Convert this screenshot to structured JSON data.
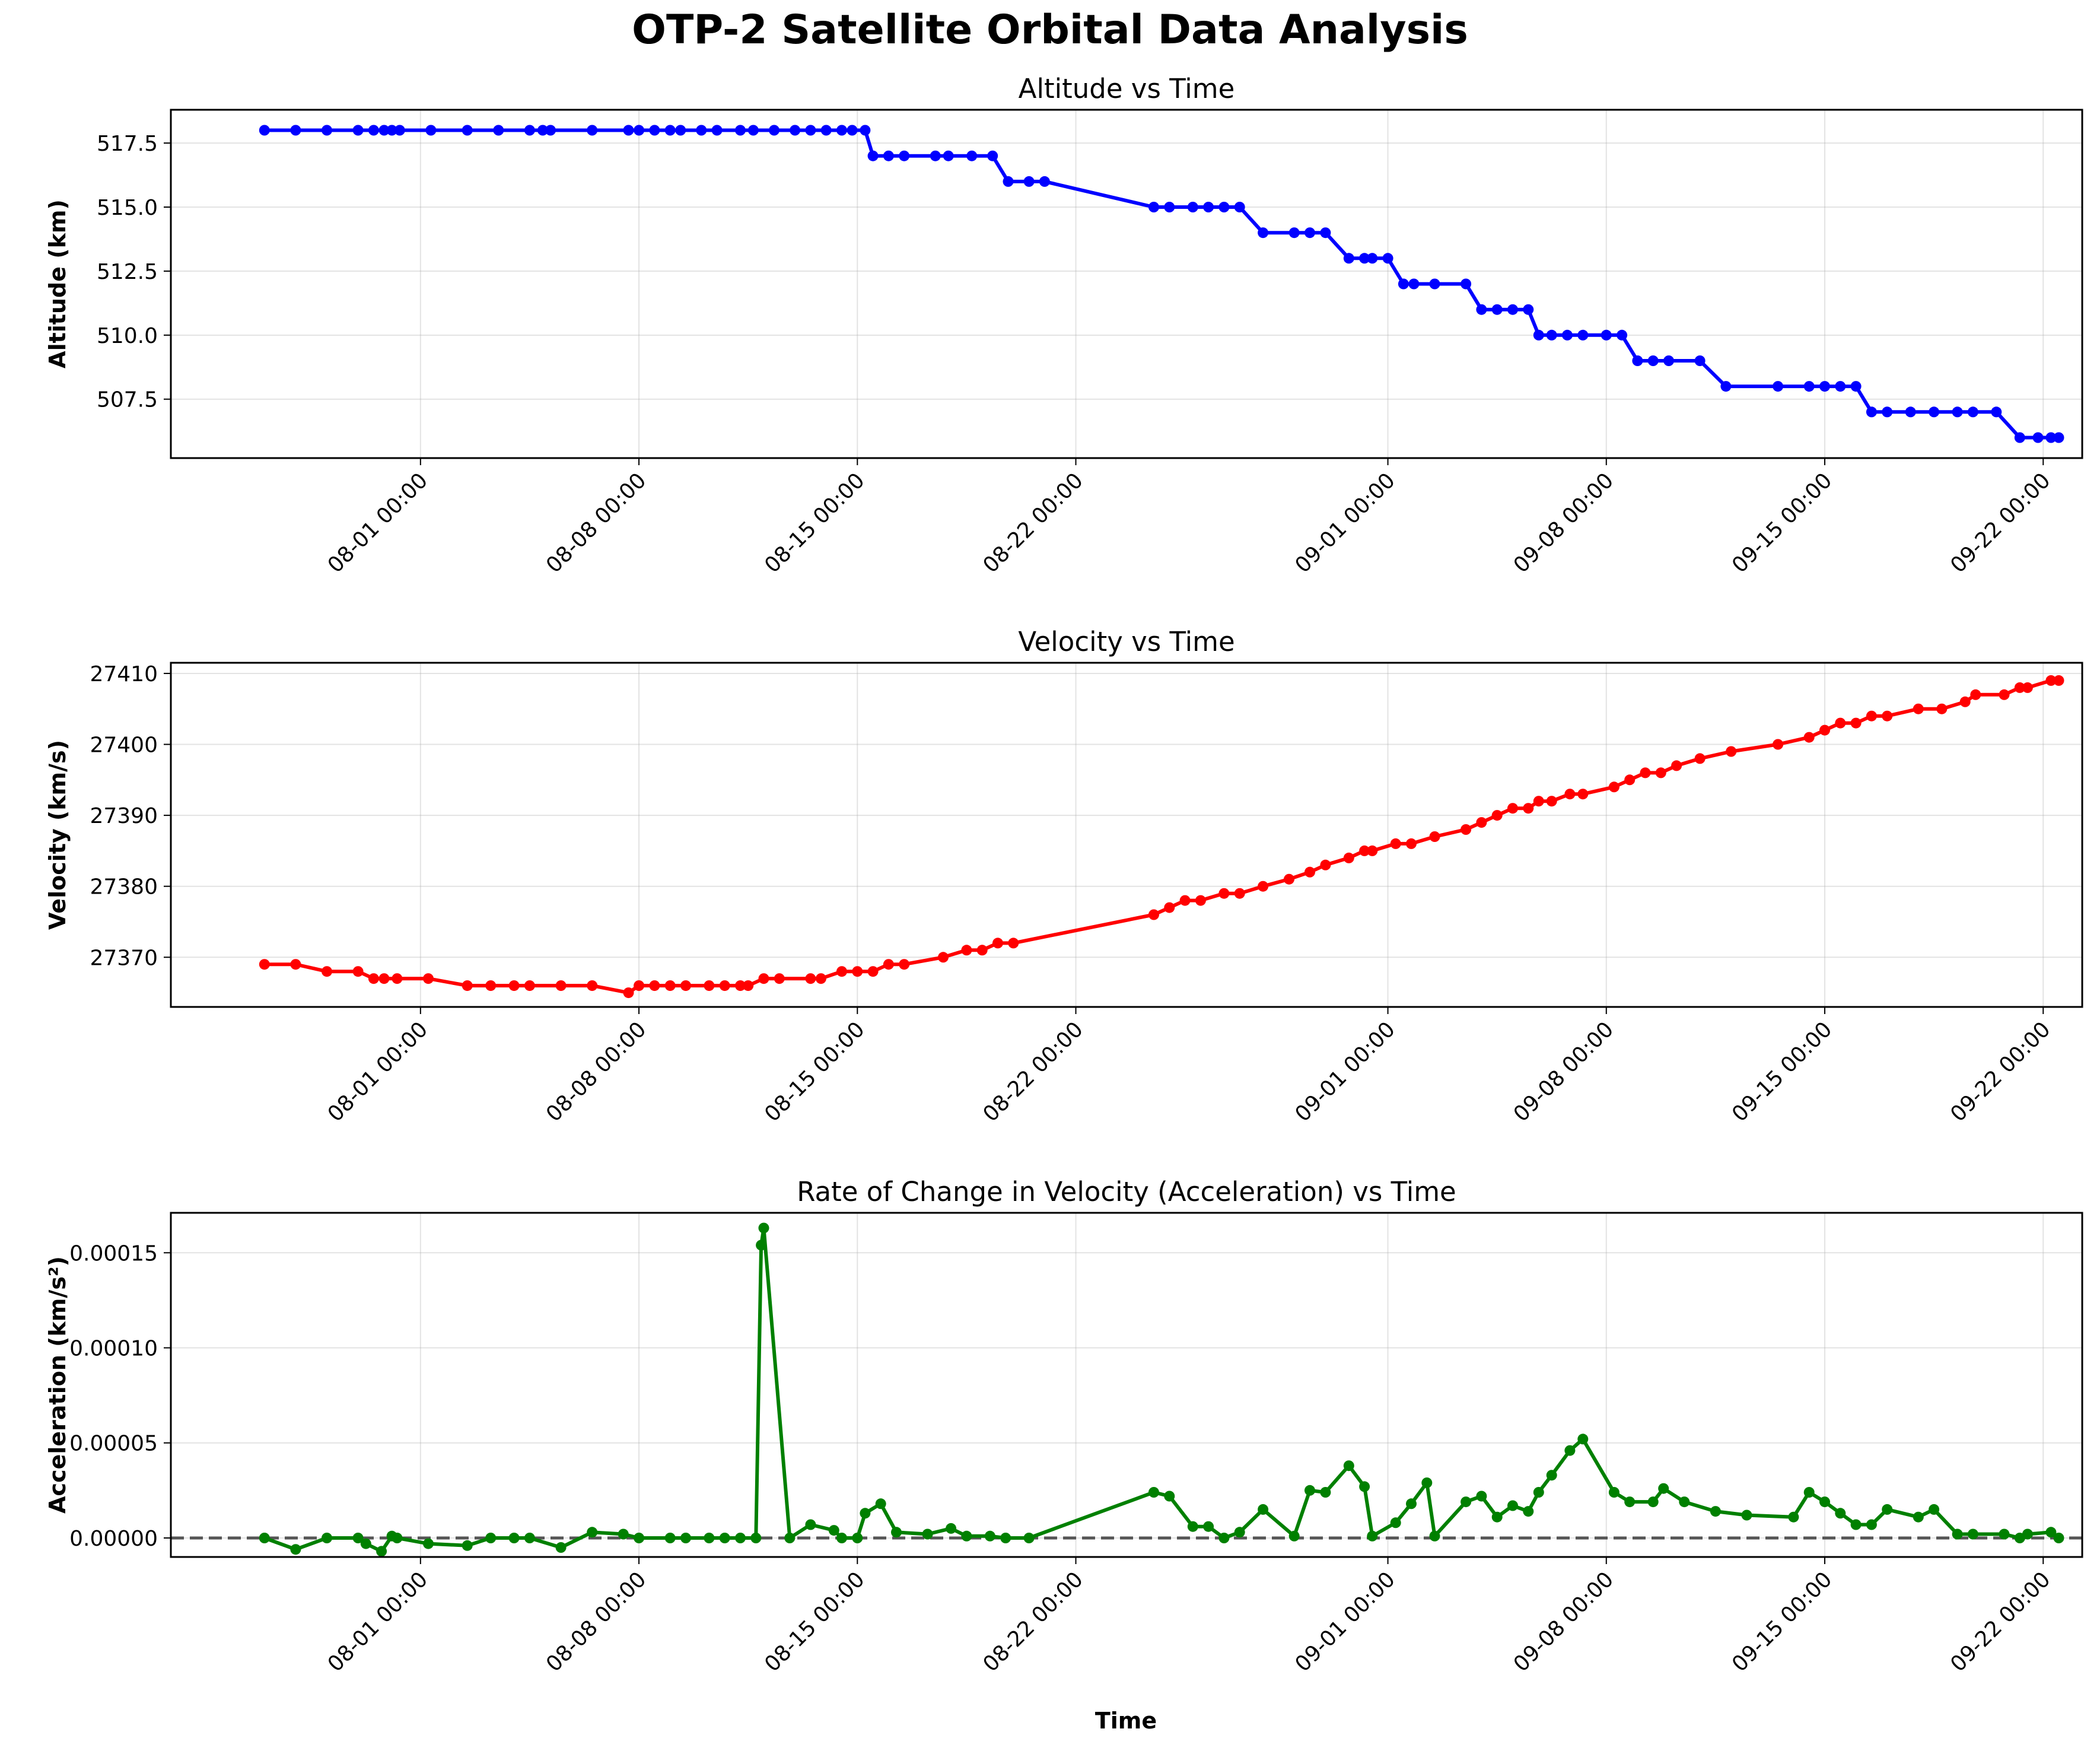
{
  "figure": {
    "title": "OTP-2 Satellite Orbital Data Analysis",
    "xlabel": "Time"
  },
  "chart_data": [
    {
      "type": "line",
      "title": "Altitude vs Time",
      "xlabel": "",
      "ylabel": "Altitude (km)",
      "color": "#0000ff",
      "grid": true,
      "xlim": [
        "2024-07-24 00:00",
        "2024-09-23 06:00"
      ],
      "ylim": [
        505.2,
        518.8
      ],
      "xticks": [
        "08-01 00:00",
        "08-08 00:00",
        "08-15 00:00",
        "08-22 00:00",
        "09-01 00:00",
        "09-08 00:00",
        "09-15 00:00",
        "09-22 00:00"
      ],
      "yticks": [
        "507.5",
        "510.0",
        "512.5",
        "515.0",
        "517.5"
      ],
      "x": [
        "2024-07-27 00:00",
        "2024-07-28 00:00",
        "2024-07-29 00:00",
        "2024-07-30 00:00",
        "2024-07-30 12:00",
        "2024-07-30 20:00",
        "2024-07-31 02:00",
        "2024-07-31 08:00",
        "2024-08-01 08:00",
        "2024-08-02 12:00",
        "2024-08-03 12:00",
        "2024-08-04 12:00",
        "2024-08-04 22:00",
        "2024-08-05 04:00",
        "2024-08-06 12:00",
        "2024-08-07 16:00",
        "2024-08-08 00:00",
        "2024-08-08 12:00",
        "2024-08-09 00:00",
        "2024-08-09 08:00",
        "2024-08-10 00:00",
        "2024-08-10 12:00",
        "2024-08-11 06:00",
        "2024-08-11 16:00",
        "2024-08-12 08:00",
        "2024-08-13 00:00",
        "2024-08-13 12:00",
        "2024-08-14 00:00",
        "2024-08-14 12:00",
        "2024-08-14 20:00",
        "2024-08-15 06:00",
        "2024-08-15 12:00",
        "2024-08-16 00:00",
        "2024-08-16 12:00",
        "2024-08-17 12:00",
        "2024-08-17 22:00",
        "2024-08-18 16:00",
        "2024-08-19 08:00",
        "2024-08-19 20:00",
        "2024-08-20 12:00",
        "2024-08-21 00:00",
        "2024-08-24 12:00",
        "2024-08-25 00:00",
        "2024-08-25 18:00",
        "2024-08-26 06:00",
        "2024-08-26 18:00",
        "2024-08-27 06:00",
        "2024-08-28 00:00",
        "2024-08-29 00:00",
        "2024-08-29 12:00",
        "2024-08-30 00:00",
        "2024-08-30 18:00",
        "2024-08-31 06:00",
        "2024-08-31 12:00",
        "2024-09-01 00:00",
        "2024-09-01 12:00",
        "2024-09-01 20:00",
        "2024-09-02 12:00",
        "2024-09-03 12:00",
        "2024-09-04 00:00",
        "2024-09-04 12:00",
        "2024-09-05 00:00",
        "2024-09-05 12:00",
        "2024-09-05 20:00",
        "2024-09-06 06:00",
        "2024-09-06 18:00",
        "2024-09-07 06:00",
        "2024-09-08 00:00",
        "2024-09-08 12:00",
        "2024-09-09 00:00",
        "2024-09-09 12:00",
        "2024-09-10 00:00",
        "2024-09-11 00:00",
        "2024-09-11 20:00",
        "2024-09-13 12:00",
        "2024-09-14 12:00",
        "2024-09-15 00:00",
        "2024-09-15 12:00",
        "2024-09-16 00:00",
        "2024-09-16 12:00",
        "2024-09-17 00:00",
        "2024-09-17 18:00",
        "2024-09-18 12:00",
        "2024-09-19 06:00",
        "2024-09-19 18:00",
        "2024-09-20 12:00",
        "2024-09-21 06:00",
        "2024-09-21 20:00",
        "2024-09-22 06:00",
        "2024-09-22 12:00"
      ],
      "y": [
        518,
        518,
        518,
        518,
        518,
        518,
        518,
        518,
        518,
        518,
        518,
        518,
        518,
        518,
        518,
        518,
        518,
        518,
        518,
        518,
        518,
        518,
        518,
        518,
        518,
        518,
        518,
        518,
        518,
        518,
        518,
        517,
        517,
        517,
        517,
        517,
        517,
        517,
        516,
        516,
        516,
        515,
        515,
        515,
        515,
        515,
        515,
        514,
        514,
        514,
        514,
        513,
        513,
        513,
        513,
        512,
        512,
        512,
        512,
        511,
        511,
        511,
        511,
        510,
        510,
        510,
        510,
        510,
        510,
        509,
        509,
        509,
        509,
        508,
        508,
        508,
        508,
        508,
        508,
        507,
        507,
        507,
        507,
        507,
        507,
        507,
        506,
        506,
        506,
        506
      ]
    },
    {
      "type": "line",
      "title": "Velocity vs Time",
      "xlabel": "",
      "ylabel": "Velocity (km/s)",
      "color": "#ff0000",
      "grid": true,
      "xlim": [
        "2024-07-24 00:00",
        "2024-09-23 06:00"
      ],
      "ylim": [
        27363,
        27411.5
      ],
      "xticks": [
        "08-01 00:00",
        "08-08 00:00",
        "08-15 00:00",
        "08-22 00:00",
        "09-01 00:00",
        "09-08 00:00",
        "09-15 00:00",
        "09-22 00:00"
      ],
      "yticks": [
        "27370",
        "27380",
        "27390",
        "27400",
        "27410"
      ],
      "x": [
        "2024-07-27 00:00",
        "2024-07-28 00:00",
        "2024-07-29 00:00",
        "2024-07-30 00:00",
        "2024-07-30 12:00",
        "2024-07-30 20:00",
        "2024-07-31 06:00",
        "2024-08-01 06:00",
        "2024-08-02 12:00",
        "2024-08-03 06:00",
        "2024-08-04 00:00",
        "2024-08-04 12:00",
        "2024-08-05 12:00",
        "2024-08-06 12:00",
        "2024-08-07 16:00",
        "2024-08-08 00:00",
        "2024-08-08 12:00",
        "2024-08-09 00:00",
        "2024-08-09 12:00",
        "2024-08-10 06:00",
        "2024-08-10 18:00",
        "2024-08-11 06:00",
        "2024-08-11 12:00",
        "2024-08-12 00:00",
        "2024-08-12 12:00",
        "2024-08-13 12:00",
        "2024-08-13 20:00",
        "2024-08-14 12:00",
        "2024-08-15 00:00",
        "2024-08-15 12:00",
        "2024-08-16 00:00",
        "2024-08-16 12:00",
        "2024-08-17 18:00",
        "2024-08-18 12:00",
        "2024-08-19 00:00",
        "2024-08-19 12:00",
        "2024-08-20 00:00",
        "2024-08-24 12:00",
        "2024-08-25 00:00",
        "2024-08-25 12:00",
        "2024-08-26 00:00",
        "2024-08-26 18:00",
        "2024-08-27 06:00",
        "2024-08-28 00:00",
        "2024-08-28 20:00",
        "2024-08-29 12:00",
        "2024-08-30 00:00",
        "2024-08-30 18:00",
        "2024-08-31 06:00",
        "2024-08-31 12:00",
        "2024-09-01 06:00",
        "2024-09-01 18:00",
        "2024-09-02 12:00",
        "2024-09-03 12:00",
        "2024-09-04 00:00",
        "2024-09-04 12:00",
        "2024-09-05 00:00",
        "2024-09-05 12:00",
        "2024-09-05 20:00",
        "2024-09-06 06:00",
        "2024-09-06 20:00",
        "2024-09-07 06:00",
        "2024-09-08 06:00",
        "2024-09-08 18:00",
        "2024-09-09 06:00",
        "2024-09-09 18:00",
        "2024-09-10 06:00",
        "2024-09-11 00:00",
        "2024-09-12 00:00",
        "2024-09-13 12:00",
        "2024-09-14 12:00",
        "2024-09-15 00:00",
        "2024-09-15 12:00",
        "2024-09-16 00:00",
        "2024-09-16 12:00",
        "2024-09-17 00:00",
        "2024-09-18 00:00",
        "2024-09-18 18:00",
        "2024-09-19 12:00",
        "2024-09-19 20:00",
        "2024-09-20 18:00",
        "2024-09-21 06:00",
        "2024-09-21 12:00",
        "2024-09-22 06:00",
        "2024-09-22 12:00"
      ],
      "y": [
        27369,
        27369,
        27368,
        27368,
        27367,
        27367,
        27367,
        27367,
        27366,
        27366,
        27366,
        27366,
        27366,
        27366,
        27365,
        27366,
        27366,
        27366,
        27366,
        27366,
        27366,
        27366,
        27366,
        27367,
        27367,
        27367,
        27367,
        27368,
        27368,
        27368,
        27369,
        27369,
        27370,
        27371,
        27371,
        27372,
        27372,
        27376,
        27377,
        27378,
        27378,
        27379,
        27379,
        27380,
        27381,
        27382,
        27383,
        27384,
        27385,
        27385,
        27386,
        27386,
        27387,
        27388,
        27389,
        27390,
        27391,
        27391,
        27392,
        27392,
        27393,
        27393,
        27394,
        27395,
        27396,
        27396,
        27397,
        27398,
        27399,
        27400,
        27401,
        27402,
        27403,
        27403,
        27404,
        27404,
        27405,
        27405,
        27406,
        27407,
        27407,
        27408,
        27408,
        27409,
        27409
      ]
    },
    {
      "type": "line",
      "title": "Rate of Change in Velocity (Acceleration) vs Time",
      "xlabel": "Time",
      "ylabel": "Acceleration (km/s²)",
      "color": "#008000",
      "grid": true,
      "reference_line": {
        "y": 0,
        "style": "dashed",
        "color": "#555555"
      },
      "xlim": [
        "2024-07-24 00:00",
        "2024-09-23 06:00"
      ],
      "ylim": [
        -1e-05,
        0.000171
      ],
      "xticks": [
        "08-01 00:00",
        "08-08 00:00",
        "08-15 00:00",
        "08-22 00:00",
        "09-01 00:00",
        "09-08 00:00",
        "09-15 00:00",
        "09-22 00:00"
      ],
      "yticks": [
        "0.00000",
        "0.00005",
        "0.00010",
        "0.00015"
      ],
      "x": [
        "2024-07-27 00:00",
        "2024-07-28 00:00",
        "2024-07-29 00:00",
        "2024-07-30 00:00",
        "2024-07-30 06:00",
        "2024-07-30 18:00",
        "2024-07-31 02:00",
        "2024-07-31 06:00",
        "2024-08-01 06:00",
        "2024-08-02 12:00",
        "2024-08-03 06:00",
        "2024-08-04 00:00",
        "2024-08-04 12:00",
        "2024-08-05 12:00",
        "2024-08-06 12:00",
        "2024-08-07 12:00",
        "2024-08-08 00:00",
        "2024-08-09 00:00",
        "2024-08-09 12:00",
        "2024-08-10 06:00",
        "2024-08-10 18:00",
        "2024-08-11 06:00",
        "2024-08-11 18:00",
        "2024-08-11 22:00",
        "2024-08-12 00:00",
        "2024-08-12 20:00",
        "2024-08-13 12:00",
        "2024-08-14 06:00",
        "2024-08-14 12:00",
        "2024-08-15 00:00",
        "2024-08-15 06:00",
        "2024-08-15 18:00",
        "2024-08-16 06:00",
        "2024-08-17 06:00",
        "2024-08-18 00:00",
        "2024-08-18 12:00",
        "2024-08-19 06:00",
        "2024-08-19 18:00",
        "2024-08-20 12:00",
        "2024-08-24 12:00",
        "2024-08-25 00:00",
        "2024-08-25 18:00",
        "2024-08-26 06:00",
        "2024-08-26 18:00",
        "2024-08-27 06:00",
        "2024-08-28 00:00",
        "2024-08-29 00:00",
        "2024-08-29 12:00",
        "2024-08-30 00:00",
        "2024-08-30 18:00",
        "2024-08-31 06:00",
        "2024-08-31 12:00",
        "2024-09-01 06:00",
        "2024-09-01 18:00",
        "2024-09-02 06:00",
        "2024-09-02 12:00",
        "2024-09-03 12:00",
        "2024-09-04 00:00",
        "2024-09-04 12:00",
        "2024-09-05 00:00",
        "2024-09-05 12:00",
        "2024-09-05 20:00",
        "2024-09-06 06:00",
        "2024-09-06 20:00",
        "2024-09-07 06:00",
        "2024-09-08 06:00",
        "2024-09-08 18:00",
        "2024-09-09 12:00",
        "2024-09-09 20:00",
        "2024-09-10 12:00",
        "2024-09-11 12:00",
        "2024-09-12 12:00",
        "2024-09-14 00:00",
        "2024-09-14 12:00",
        "2024-09-15 00:00",
        "2024-09-15 12:00",
        "2024-09-16 00:00",
        "2024-09-16 12:00",
        "2024-09-17 00:00",
        "2024-09-18 00:00",
        "2024-09-18 12:00",
        "2024-09-19 06:00",
        "2024-09-19 18:00",
        "2024-09-20 18:00",
        "2024-09-21 06:00",
        "2024-09-21 12:00",
        "2024-09-22 06:00",
        "2024-09-22 12:00"
      ],
      "y": [
        0,
        -6e-06,
        0,
        0,
        -3e-06,
        -7e-06,
        1e-06,
        0,
        -3e-06,
        -4e-06,
        0,
        0,
        0,
        -5e-06,
        3e-06,
        2e-06,
        0,
        0,
        0,
        0,
        0,
        0,
        0,
        0.000154,
        0.000163,
        0,
        7e-06,
        4e-06,
        0,
        0,
        1.3e-05,
        1.8e-05,
        3e-06,
        2e-06,
        5e-06,
        1e-06,
        1e-06,
        0,
        0,
        2.4e-05,
        2.2e-05,
        6e-06,
        6e-06,
        0,
        3e-06,
        1.5e-05,
        1e-06,
        2.5e-05,
        2.4e-05,
        3.8e-05,
        2.7e-05,
        1e-06,
        8e-06,
        1.8e-05,
        2.9e-05,
        1e-06,
        1.9e-05,
        2.2e-05,
        1.1e-05,
        1.7e-05,
        1.4e-05,
        2.4e-05,
        3.3e-05,
        4.6e-05,
        5.2e-05,
        2.4e-05,
        1.9e-05,
        1.9e-05,
        2.6e-05,
        1.9e-05,
        1.4e-05,
        1.2e-05,
        1.1e-05,
        2.4e-05,
        1.9e-05,
        1.3e-05,
        7e-06,
        7e-06,
        1.5e-05,
        1.1e-05,
        1.5e-05,
        2e-06,
        2e-06,
        2e-06,
        0,
        2e-06,
        3e-06,
        0
      ]
    }
  ]
}
